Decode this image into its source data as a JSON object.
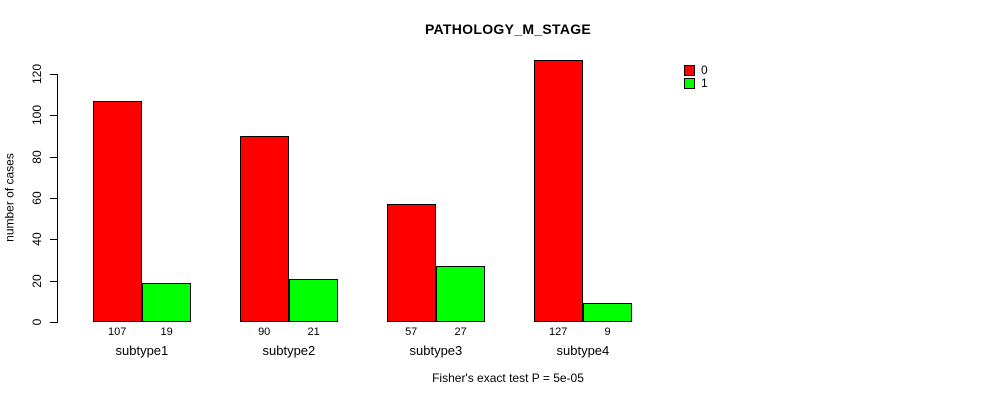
{
  "chart_data": {
    "type": "bar",
    "title": "PATHOLOGY_M_STAGE",
    "ylabel": "number of cases",
    "xlabel": "",
    "categories": [
      "subtype1",
      "subtype2",
      "subtype3",
      "subtype4"
    ],
    "series": [
      {
        "name": "0",
        "color": "#ff0000",
        "values": [
          107,
          90,
          57,
          127
        ]
      },
      {
        "name": "1",
        "color": "#00ff00",
        "values": [
          19,
          21,
          27,
          9
        ]
      }
    ],
    "yticks": [
      0,
      20,
      40,
      60,
      80,
      100,
      120
    ],
    "ylim": [
      0,
      130
    ],
    "grid": false,
    "legend_position": "right",
    "footer": "Fisher's exact test P = 5e-05"
  }
}
